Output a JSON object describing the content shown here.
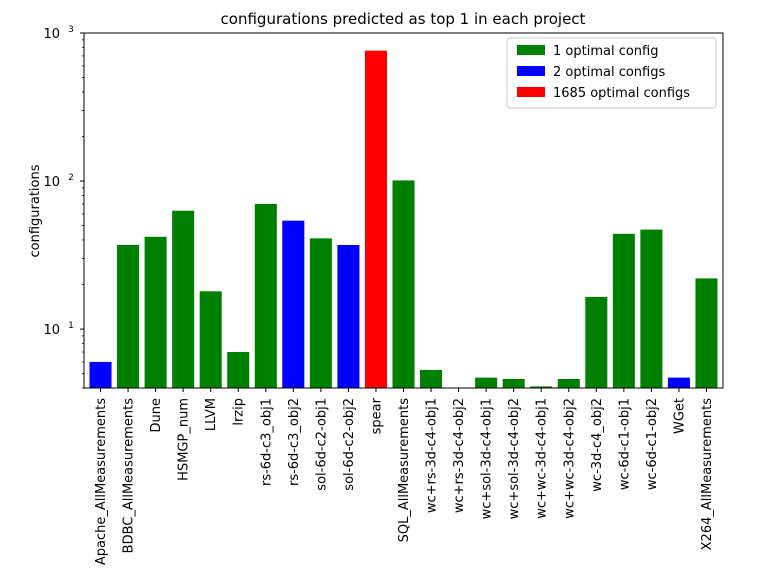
{
  "chart_data": {
    "type": "bar",
    "title": "configurations predicted as top 1 in each project",
    "xlabel": "",
    "ylabel": "configurations",
    "yscale": "log",
    "ylim": [
      4,
      1000
    ],
    "yticks": [
      {
        "value": 10,
        "base": "10",
        "exp": "1"
      },
      {
        "value": 100,
        "base": "10",
        "exp": "2"
      },
      {
        "value": 1000,
        "base": "10",
        "exp": "3"
      }
    ],
    "legend_position": "top-right",
    "legend": [
      {
        "label": "1 optimal config",
        "color": "#008000"
      },
      {
        "label": "2 optimal configs",
        "color": "#0000ff"
      },
      {
        "label": "1685 optimal configs",
        "color": "#ff0000"
      }
    ],
    "categories": [
      "Apache_AllMeasurements",
      "BDBC_AllMeasurements",
      "Dune",
      "HSMGP_num",
      "LLVM",
      "lrzip",
      "rs-6d-c3_obj1",
      "rs-6d-c3_obj2",
      "sol-6d-c2-obj1",
      "sol-6d-c2-obj2",
      "spear",
      "SQL_AllMeasurements",
      "wc+rs-3d-c4-obj1",
      "wc+rs-3d-c4-obj2",
      "wc+sol-3d-c4-obj1",
      "wc+sol-3d-c4-obj2",
      "wc+wc-3d-c4-obj1",
      "wc+wc-3d-c4-obj2",
      "wc-3d-c4_obj2",
      "wc-6d-c1-obj1",
      "wc-6d-c1-obj2",
      "WGet",
      "X264_AllMeasurements"
    ],
    "values": [
      6,
      37,
      42,
      63,
      18,
      7,
      70,
      54,
      41,
      37,
      760,
      101,
      5.3,
      4,
      4.7,
      4.6,
      4.1,
      4.6,
      16.5,
      44,
      47,
      4.7,
      22
    ],
    "colors": [
      "#0000ff",
      "#008000",
      "#008000",
      "#008000",
      "#008000",
      "#008000",
      "#008000",
      "#0000ff",
      "#008000",
      "#0000ff",
      "#ff0000",
      "#008000",
      "#008000",
      "#008000",
      "#008000",
      "#008000",
      "#008000",
      "#008000",
      "#008000",
      "#008000",
      "#008000",
      "#0000ff",
      "#008000"
    ]
  }
}
